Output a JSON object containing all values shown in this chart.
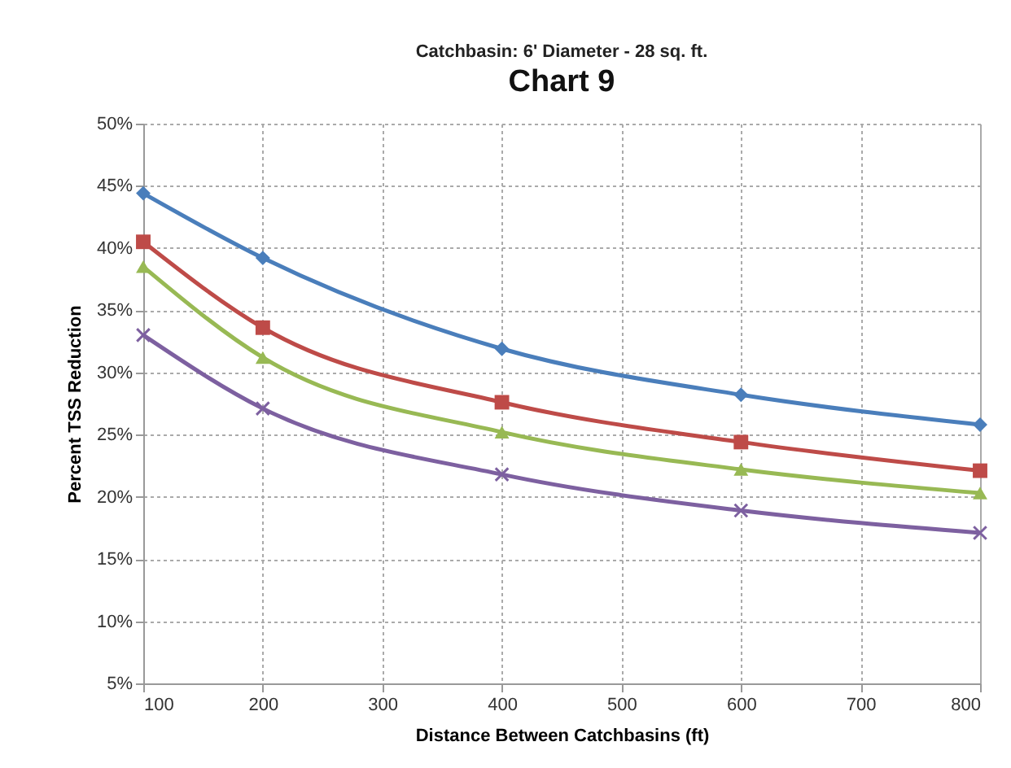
{
  "chart_data": {
    "type": "line",
    "title": "Chart 9",
    "subtitle": "Catchbasin: 6' Diameter - 28 sq. ft.",
    "xlabel": "Distance Between Catchbasins (ft)",
    "ylabel": "Percent TSS Reduction",
    "x": [
      100,
      200,
      400,
      600,
      800
    ],
    "series": [
      {
        "color": "#4a7ebb",
        "marker": "diamond",
        "values": [
          44.4,
          39.2,
          31.9,
          28.2,
          25.8
        ]
      },
      {
        "color": "#be4b48",
        "marker": "square",
        "values": [
          40.5,
          33.6,
          27.6,
          24.4,
          22.1
        ]
      },
      {
        "color": "#98b954",
        "marker": "triangle",
        "values": [
          38.5,
          31.2,
          25.2,
          22.2,
          20.3
        ]
      },
      {
        "color": "#7d60a0",
        "marker": "cross",
        "values": [
          33.0,
          27.1,
          21.8,
          18.9,
          17.1
        ]
      }
    ],
    "xlim": [
      100,
      800
    ],
    "xticks": [
      100,
      200,
      300,
      400,
      500,
      600,
      700,
      800
    ],
    "ylim": [
      5,
      50
    ],
    "yticks": [
      {
        "value": 5,
        "label": "5%"
      },
      {
        "value": 10,
        "label": "10%"
      },
      {
        "value": 15,
        "label": "15%"
      },
      {
        "value": 20,
        "label": "20%"
      },
      {
        "value": 25,
        "label": "25%"
      },
      {
        "value": 30,
        "label": "30%"
      },
      {
        "value": 35,
        "label": "35%"
      },
      {
        "value": 40,
        "label": "40%"
      },
      {
        "value": 45,
        "label": "45%"
      },
      {
        "value": 50,
        "label": "50%"
      }
    ],
    "grid": true,
    "line_style": "solid"
  }
}
